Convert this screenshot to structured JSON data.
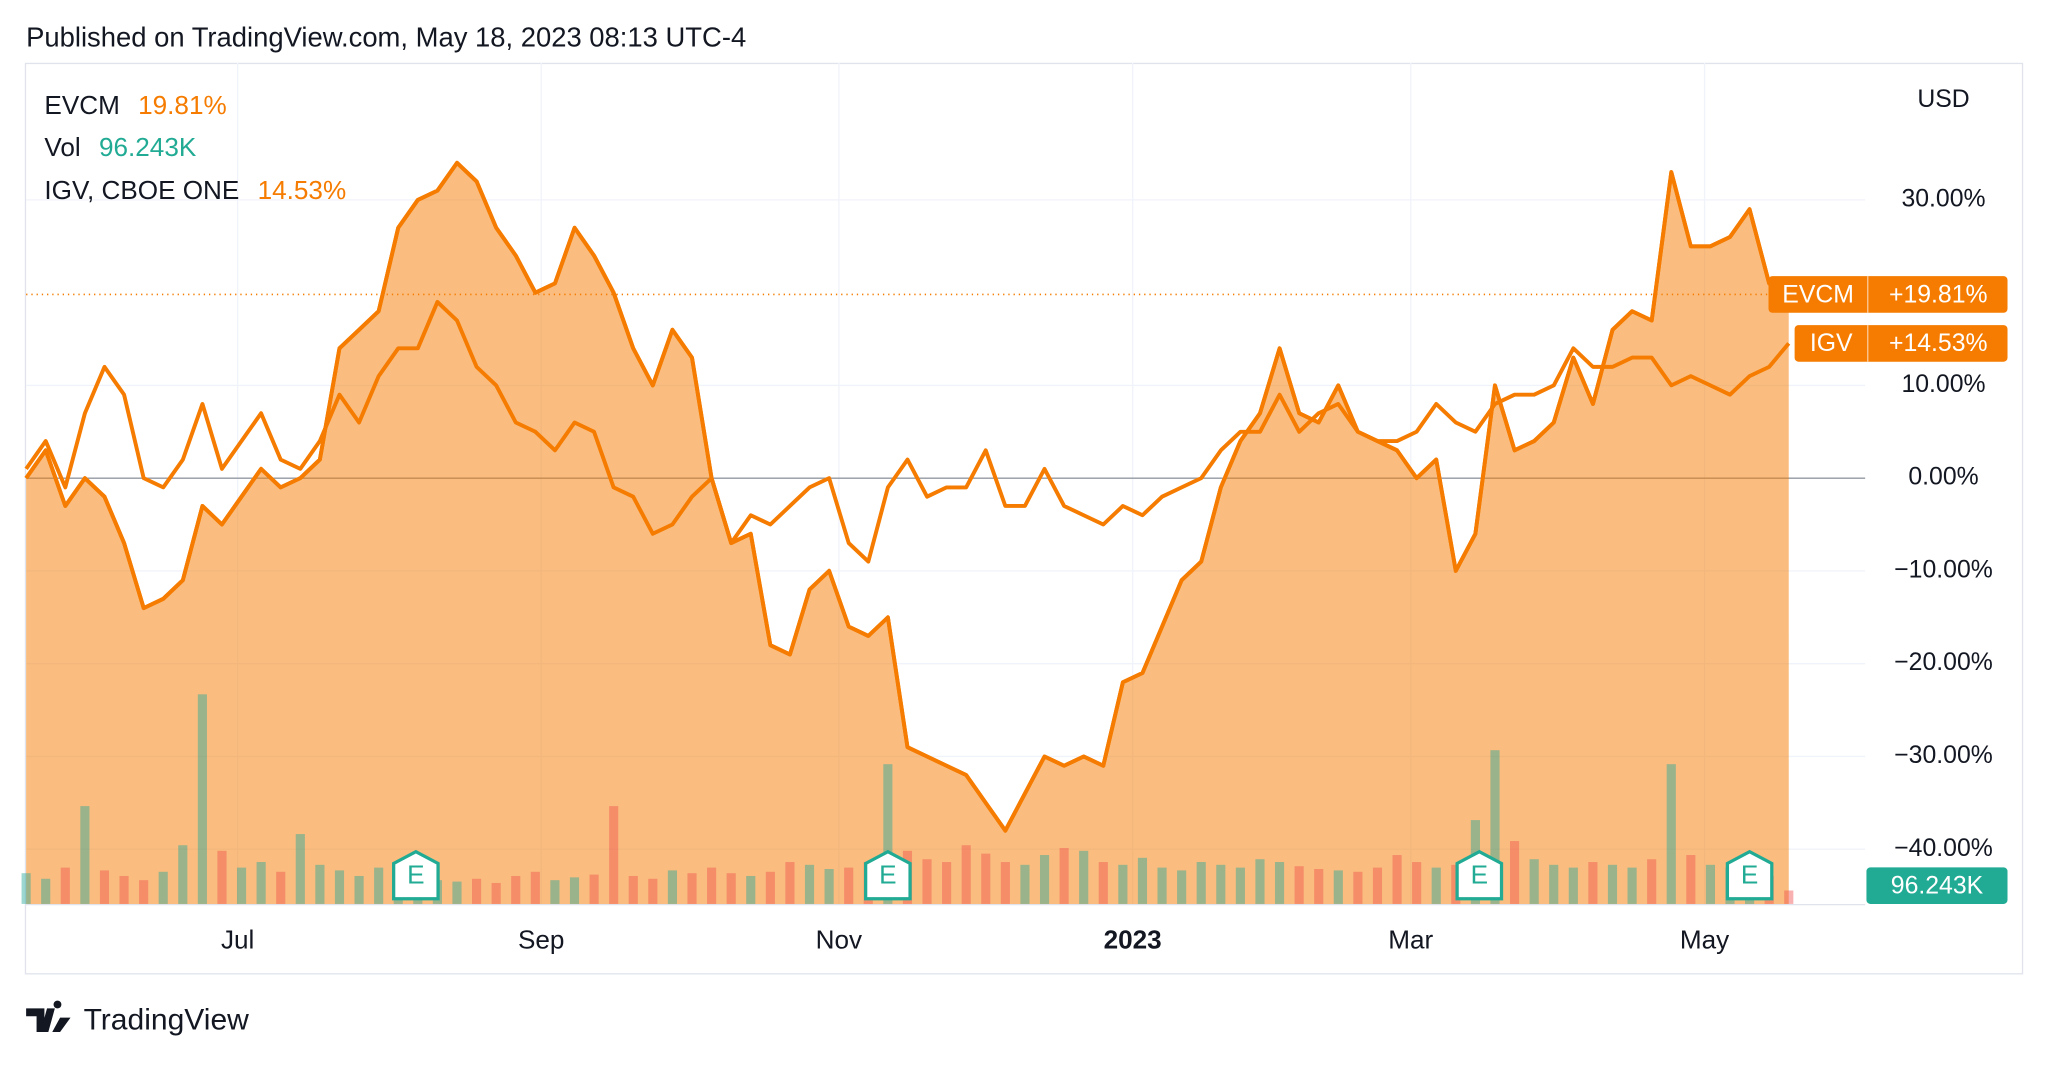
{
  "header": {
    "published": "Published on TradingView.com, May 18, 2023 08:13 UTC-4"
  },
  "footer": {
    "brand": "TradingView"
  },
  "chart_data": {
    "type": "line",
    "currency": "USD",
    "grid": true,
    "xlim": [
      0,
      93.9
    ],
    "ylim": [
      -45.9,
      44.5
    ],
    "yticks": [
      {
        "value": 30,
        "label": "30.00%"
      },
      {
        "value": 10,
        "label": "10.00%"
      },
      {
        "value": 0,
        "label": "0.00%"
      },
      {
        "value": -10,
        "label": "−10.00%"
      },
      {
        "value": -20,
        "label": "−20.00%"
      },
      {
        "value": -30,
        "label": "−30.00%"
      },
      {
        "value": -40,
        "label": "−40.00%"
      }
    ],
    "xticks": [
      {
        "value": 10.8,
        "label": "Jul"
      },
      {
        "value": 26.3,
        "label": "Sep"
      },
      {
        "value": 41.5,
        "label": "Nov"
      },
      {
        "value": 56.5,
        "label": "2023"
      },
      {
        "value": 70.7,
        "label": "Mar"
      },
      {
        "value": 85.7,
        "label": "May"
      }
    ],
    "series": [
      {
        "name": "EVCM",
        "tag_name": "EVCM",
        "color": "#f57c00",
        "area": true,
        "last_label": "19.81%",
        "tag_label": "+19.81%",
        "values": [
          0,
          3,
          -3,
          0,
          -2,
          -7,
          -14,
          -13,
          -11,
          -3,
          -5,
          -2,
          1,
          -1,
          0,
          2,
          14,
          16,
          18,
          27,
          30,
          31,
          34,
          32,
          27,
          24,
          20,
          21,
          27,
          24,
          20,
          14,
          10,
          16,
          13,
          0,
          -7,
          -6,
          -18,
          -19,
          -12,
          -10,
          -16,
          -17,
          -15,
          -29,
          -30,
          -31,
          -32,
          -35,
          -38,
          -34,
          -30,
          -31,
          -30,
          -31,
          -22,
          -21,
          -16,
          -11,
          -9,
          -1,
          4,
          7,
          14,
          7,
          6,
          10,
          5,
          4,
          3,
          0,
          2,
          -10,
          -6,
          10,
          3,
          4,
          6,
          13,
          8,
          16,
          18,
          17,
          33,
          25,
          25,
          26,
          29,
          21,
          19.81
        ]
      },
      {
        "name": "IGV, CBOE ONE",
        "tag_name": "IGV",
        "color": "#f57c00",
        "area": false,
        "last_label": "14.53%",
        "tag_label": "+14.53%",
        "values": [
          1,
          4,
          -1,
          7,
          12,
          9,
          0,
          -1,
          2,
          8,
          1,
          4,
          7,
          2,
          1,
          4,
          9,
          6,
          11,
          14,
          14,
          19,
          17,
          12,
          10,
          6,
          5,
          3,
          6,
          5,
          -1,
          -2,
          -6,
          -5,
          -2,
          0,
          -7,
          -4,
          -5,
          -3,
          -1,
          0,
          -7,
          -9,
          -1,
          2,
          -2,
          -1,
          -1,
          3,
          -3,
          -3,
          1,
          -3,
          -4,
          -5,
          -3,
          -4,
          -2,
          -1,
          0,
          3,
          5,
          5,
          9,
          5,
          7,
          8,
          5,
          4,
          4,
          5,
          8,
          6,
          5,
          8,
          9,
          9,
          10,
          14,
          12,
          12,
          13,
          13,
          10,
          11,
          10,
          9,
          11,
          12,
          14.53
        ]
      }
    ],
    "volume": {
      "name": "Vol",
      "last_label": "96.243K",
      "ylim": [
        0,
        6000000
      ],
      "up_color": "#26a69a",
      "down_color": "#ef5350",
      "values": [
        220000,
        180000,
        260000,
        700000,
        240000,
        200000,
        170000,
        230000,
        420000,
        1500000,
        380000,
        260000,
        300000,
        230000,
        500000,
        280000,
        240000,
        200000,
        260000,
        230000,
        200000,
        170000,
        160000,
        180000,
        150000,
        200000,
        230000,
        170000,
        190000,
        210000,
        700000,
        200000,
        180000,
        240000,
        220000,
        260000,
        220000,
        200000,
        230000,
        300000,
        280000,
        250000,
        260000,
        300000,
        1000000,
        380000,
        320000,
        300000,
        420000,
        360000,
        300000,
        280000,
        350000,
        400000,
        380000,
        300000,
        280000,
        330000,
        260000,
        240000,
        300000,
        280000,
        260000,
        320000,
        300000,
        270000,
        250000,
        240000,
        230000,
        260000,
        350000,
        300000,
        260000,
        280000,
        600000,
        1100000,
        450000,
        320000,
        280000,
        260000,
        300000,
        280000,
        260000,
        320000,
        1000000,
        350000,
        280000,
        260000,
        240000,
        200000,
        96243
      ]
    },
    "events": [
      {
        "x": 19.9,
        "label": "E"
      },
      {
        "x": 44,
        "label": "E"
      },
      {
        "x": 74.2,
        "label": "E"
      },
      {
        "x": 88,
        "label": "E"
      }
    ]
  }
}
